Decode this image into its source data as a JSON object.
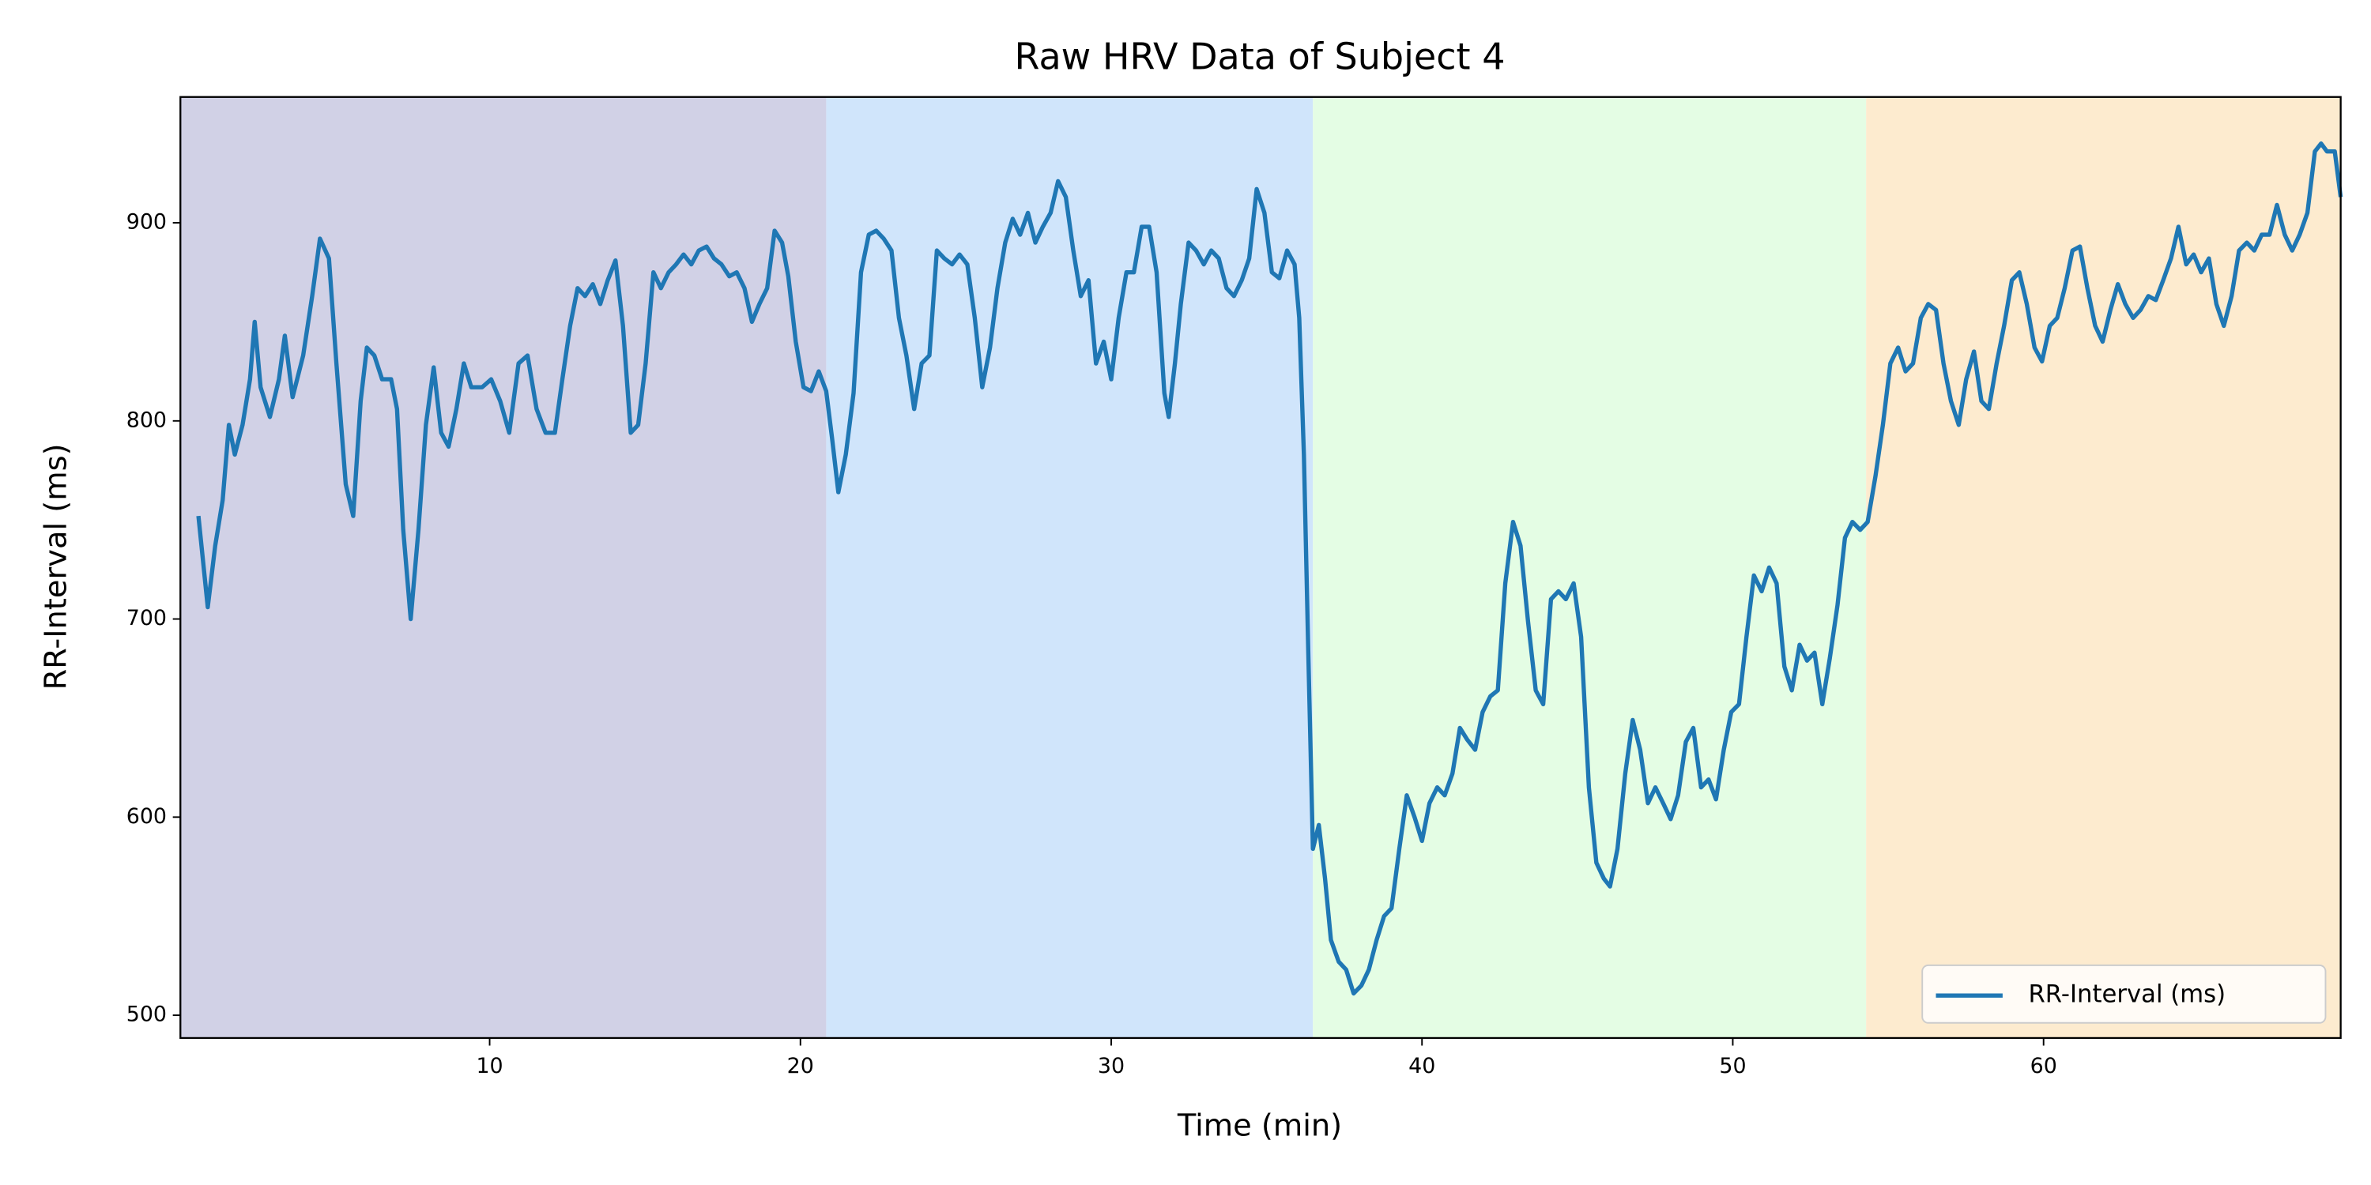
{
  "chart_data": {
    "type": "line",
    "title": "Raw HRV Data of Subject 4",
    "x_label": "Time (min)",
    "y_label": "RR-Interval (ms)",
    "xlim": [
      0.05,
      69.56
    ],
    "ylim": [
      488.5,
      963.5
    ],
    "xticks": [
      10,
      20,
      30,
      40,
      50,
      60
    ],
    "yticks": [
      500,
      600,
      700,
      800,
      900
    ],
    "grid": false,
    "legend": "lower right",
    "spans": [
      {
        "x0": 0.05,
        "x1": 20.83,
        "color": "#d1d1e6"
      },
      {
        "x0": 20.83,
        "x1": 36.49,
        "color": "#d0e5fb"
      },
      {
        "x0": 36.49,
        "x1": 54.29,
        "color": "#e4fde4"
      },
      {
        "x0": 54.29,
        "x1": 69.56,
        "color": "#fdebcf"
      }
    ],
    "x": [
      0.63,
      0.93,
      1.17,
      1.41,
      1.61,
      1.8,
      2.05,
      2.29,
      2.44,
      2.63,
      2.93,
      3.22,
      3.41,
      3.66,
      4.0,
      4.29,
      4.54,
      4.83,
      5.07,
      5.37,
      5.61,
      5.85,
      6.05,
      6.29,
      6.54,
      6.83,
      7.02,
      7.22,
      7.46,
      7.71,
      7.95,
      8.2,
      8.44,
      8.68,
      8.93,
      9.17,
      9.41,
      9.76,
      10.05,
      10.34,
      10.63,
      10.93,
      11.22,
      11.51,
      11.8,
      12.1,
      12.34,
      12.59,
      12.83,
      13.07,
      13.32,
      13.56,
      13.8,
      14.05,
      14.29,
      14.54,
      14.78,
      15.02,
      15.27,
      15.51,
      15.76,
      16.0,
      16.24,
      16.49,
      16.73,
      16.98,
      17.22,
      17.46,
      17.71,
      17.95,
      18.2,
      18.44,
      18.68,
      18.93,
      19.17,
      19.41,
      19.61,
      19.85,
      20.1,
      20.34,
      20.59,
      20.83,
      21.02,
      21.22,
      21.46,
      21.71,
      21.95,
      22.2,
      22.44,
      22.68,
      22.93,
      23.17,
      23.41,
      23.66,
      23.9,
      24.15,
      24.39,
      24.63,
      24.88,
      25.12,
      25.37,
      25.61,
      25.85,
      26.1,
      26.34,
      26.59,
      26.83,
      27.07,
      27.32,
      27.56,
      27.8,
      28.05,
      28.29,
      28.54,
      28.78,
      29.02,
      29.27,
      29.51,
      29.76,
      30.0,
      30.24,
      30.49,
      30.73,
      30.98,
      31.22,
      31.46,
      31.71,
      31.85,
      32.05,
      32.24,
      32.49,
      32.73,
      32.98,
      33.22,
      33.46,
      33.71,
      33.95,
      34.2,
      34.44,
      34.68,
      34.93,
      35.17,
      35.41,
      35.66,
      35.9,
      36.05,
      36.2,
      36.34,
      36.49,
      36.68,
      36.88,
      37.07,
      37.32,
      37.56,
      37.8,
      38.05,
      38.29,
      38.54,
      38.78,
      39.02,
      39.27,
      39.51,
      39.76,
      40.0,
      40.24,
      40.49,
      40.73,
      40.98,
      41.22,
      41.46,
      41.71,
      41.95,
      42.2,
      42.44,
      42.68,
      42.93,
      43.17,
      43.41,
      43.66,
      43.9,
      44.15,
      44.39,
      44.63,
      44.88,
      45.12,
      45.37,
      45.61,
      45.85,
      46.05,
      46.29,
      46.54,
      46.78,
      47.02,
      47.27,
      47.51,
      47.76,
      48.0,
      48.24,
      48.49,
      48.73,
      48.98,
      49.22,
      49.46,
      49.71,
      49.95,
      50.2,
      50.44,
      50.68,
      50.93,
      51.17,
      51.41,
      51.66,
      51.9,
      52.15,
      52.39,
      52.63,
      52.88,
      53.12,
      53.37,
      53.61,
      53.85,
      54.1,
      54.34,
      54.59,
      54.83,
      55.07,
      55.32,
      55.56,
      55.8,
      56.05,
      56.29,
      56.54,
      56.78,
      57.02,
      57.27,
      57.51,
      57.76,
      58.0,
      58.24,
      58.49,
      58.73,
      58.98,
      59.22,
      59.46,
      59.71,
      59.95,
      60.2,
      60.44,
      60.68,
      60.93,
      61.17,
      61.41,
      61.66,
      61.9,
      62.15,
      62.39,
      62.63,
      62.88,
      63.12,
      63.37,
      63.61,
      63.85,
      64.1,
      64.34,
      64.59,
      64.83,
      65.07,
      65.32,
      65.56,
      65.8,
      66.05,
      66.29,
      66.54,
      66.78,
      67.02,
      67.27,
      67.51,
      67.76,
      68.0,
      68.24,
      68.49,
      68.73,
      68.93,
      69.12,
      69.37,
      69.56
    ],
    "series": [
      {
        "name": "RR-Interval (ms)",
        "color": "#1f77b4",
        "values": [
          752,
          706,
          737,
          760,
          798,
          783,
          798,
          821,
          850,
          817,
          802,
          821,
          843,
          812,
          833,
          863,
          892,
          882,
          829,
          768,
          752,
          810,
          837,
          833,
          821,
          821,
          806,
          745,
          700,
          745,
          798,
          827,
          794,
          787,
          806,
          829,
          817,
          817,
          821,
          810,
          794,
          829,
          833,
          806,
          794,
          794,
          821,
          848,
          867,
          863,
          869,
          859,
          871,
          881,
          848,
          794,
          798,
          829,
          875,
          867,
          875,
          879,
          884,
          879,
          886,
          888,
          882,
          879,
          873,
          875,
          867,
          850,
          859,
          867,
          896,
          890,
          873,
          840,
          817,
          815,
          825,
          815,
          791,
          764,
          783,
          814,
          875,
          894,
          896,
          892,
          886,
          852,
          833,
          806,
          829,
          833,
          886,
          882,
          879,
          884,
          879,
          852,
          817,
          837,
          867,
          890,
          902,
          894,
          905,
          890,
          898,
          905,
          921,
          913,
          886,
          863,
          871,
          829,
          840,
          821,
          852,
          875,
          875,
          898,
          898,
          875,
          814,
          802,
          829,
          859,
          890,
          886,
          879,
          886,
          882,
          867,
          863,
          871,
          882,
          917,
          905,
          875,
          872,
          886,
          879,
          852,
          783,
          684,
          584,
          596,
          569,
          538,
          527,
          523,
          511,
          515,
          523,
          538,
          550,
          554,
          584,
          611,
          600,
          588,
          607,
          615,
          611,
          622,
          645,
          639,
          634,
          653,
          661,
          664,
          718,
          749,
          737,
          699,
          664,
          657,
          710,
          714,
          710,
          718,
          691,
          615,
          577,
          569,
          565,
          584,
          622,
          649,
          634,
          607,
          615,
          607,
          599,
          611,
          638,
          645,
          615,
          619,
          609,
          634,
          653,
          657,
          691,
          722,
          714,
          726,
          718,
          676,
          664,
          687,
          679,
          683,
          657,
          680,
          707,
          741,
          749,
          745,
          749,
          772,
          798,
          829,
          837,
          825,
          829,
          852,
          859,
          856,
          829,
          810,
          798,
          821,
          835,
          810,
          806,
          829,
          848,
          871,
          875,
          859,
          837,
          830,
          848,
          852,
          867,
          886,
          888,
          867,
          848,
          840,
          856,
          869,
          859,
          852,
          856,
          863,
          861,
          871,
          882,
          898,
          879,
          884,
          875,
          882,
          859,
          848,
          863,
          886,
          890,
          886,
          894,
          894,
          909,
          894,
          886,
          894,
          905,
          936,
          940,
          936,
          936,
          913
        ]
      }
    ]
  }
}
